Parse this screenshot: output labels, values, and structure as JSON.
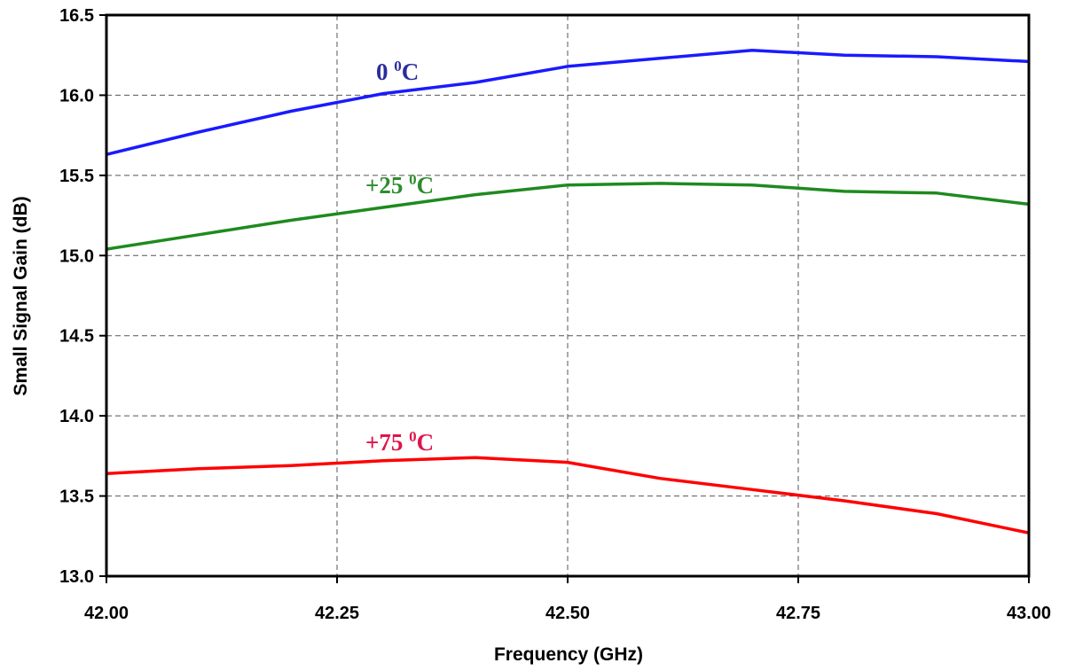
{
  "chart_data": {
    "type": "line",
    "title": "",
    "xlabel": "Frequency (GHz)",
    "ylabel": "Small Signal Gain (dB)",
    "xlim": [
      42.0,
      43.0
    ],
    "ylim": [
      13.0,
      16.5
    ],
    "x_ticks": [
      "42.00",
      "42.25",
      "42.50",
      "42.75",
      "43.00"
    ],
    "y_ticks": [
      "13.0",
      "13.5",
      "14.0",
      "14.5",
      "15.0",
      "15.5",
      "16.0",
      "16.5"
    ],
    "grid": true,
    "x": [
      42.0,
      42.1,
      42.2,
      42.3,
      42.4,
      42.5,
      42.6,
      42.7,
      42.8,
      42.9,
      43.0
    ],
    "series": [
      {
        "label": {
          "main": "0 ",
          "sup": "0",
          "unit": "C"
        },
        "color": "#1a1aff",
        "label_color": "#2b2b9e",
        "values": [
          15.63,
          15.77,
          15.9,
          16.01,
          16.08,
          16.18,
          16.23,
          16.28,
          16.25,
          16.24,
          16.21
        ]
      },
      {
        "label": {
          "main": "+25 ",
          "sup": "0",
          "unit": "C"
        },
        "color": "#1f8a1f",
        "label_color": "#2e8b2e",
        "values": [
          15.04,
          15.13,
          15.22,
          15.3,
          15.38,
          15.44,
          15.45,
          15.44,
          15.4,
          15.39,
          15.32
        ]
      },
      {
        "label": {
          "main": "+75 ",
          "sup": "0",
          "unit": "C"
        },
        "color": "#ff0000",
        "label_color": "#e0144c",
        "values": [
          13.64,
          13.67,
          13.69,
          13.72,
          13.74,
          13.71,
          13.61,
          13.54,
          13.47,
          13.39,
          13.27
        ]
      }
    ]
  }
}
